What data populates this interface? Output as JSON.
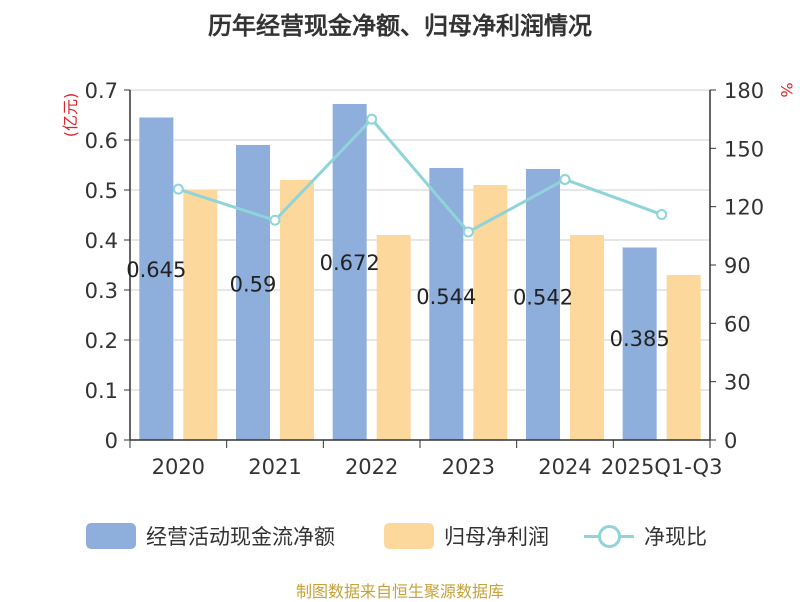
{
  "chart_data": {
    "type": "bar",
    "title": "历年经营现金净额、归母净利润情况",
    "categories": [
      "2020",
      "2021",
      "2022",
      "2023",
      "2024",
      "2025Q1-Q3"
    ],
    "series": [
      {
        "name": "经营活动现金流净额",
        "type": "bar",
        "axis": "left",
        "color": "#8eaedb",
        "values": [
          0.645,
          0.59,
          0.672,
          0.544,
          0.542,
          0.385
        ],
        "labels": [
          "0.645",
          "0.59",
          "0.672",
          "0.544",
          "0.542",
          "0.385"
        ]
      },
      {
        "name": "归母净利润",
        "type": "bar",
        "axis": "left",
        "color": "#fdd89c",
        "values": [
          0.5,
          0.52,
          0.41,
          0.51,
          0.41,
          0.33
        ]
      },
      {
        "name": "净现比",
        "type": "line",
        "axis": "right",
        "color": "#8fd4d9",
        "values": [
          129,
          113,
          165,
          107,
          134,
          116
        ]
      }
    ],
    "y_left": {
      "label": "(亿元)",
      "range": [
        0,
        0.7
      ],
      "ticks": [
        "0",
        "0.1",
        "0.2",
        "0.3",
        "0.4",
        "0.5",
        "0.6",
        "0.7"
      ]
    },
    "y_right": {
      "label": "%",
      "range": [
        0,
        180
      ],
      "ticks": [
        "0",
        "30",
        "60",
        "90",
        "120",
        "150",
        "180"
      ]
    },
    "grid": true,
    "legend_position": "bottom"
  },
  "source": "制图数据来自恒生聚源数据库"
}
